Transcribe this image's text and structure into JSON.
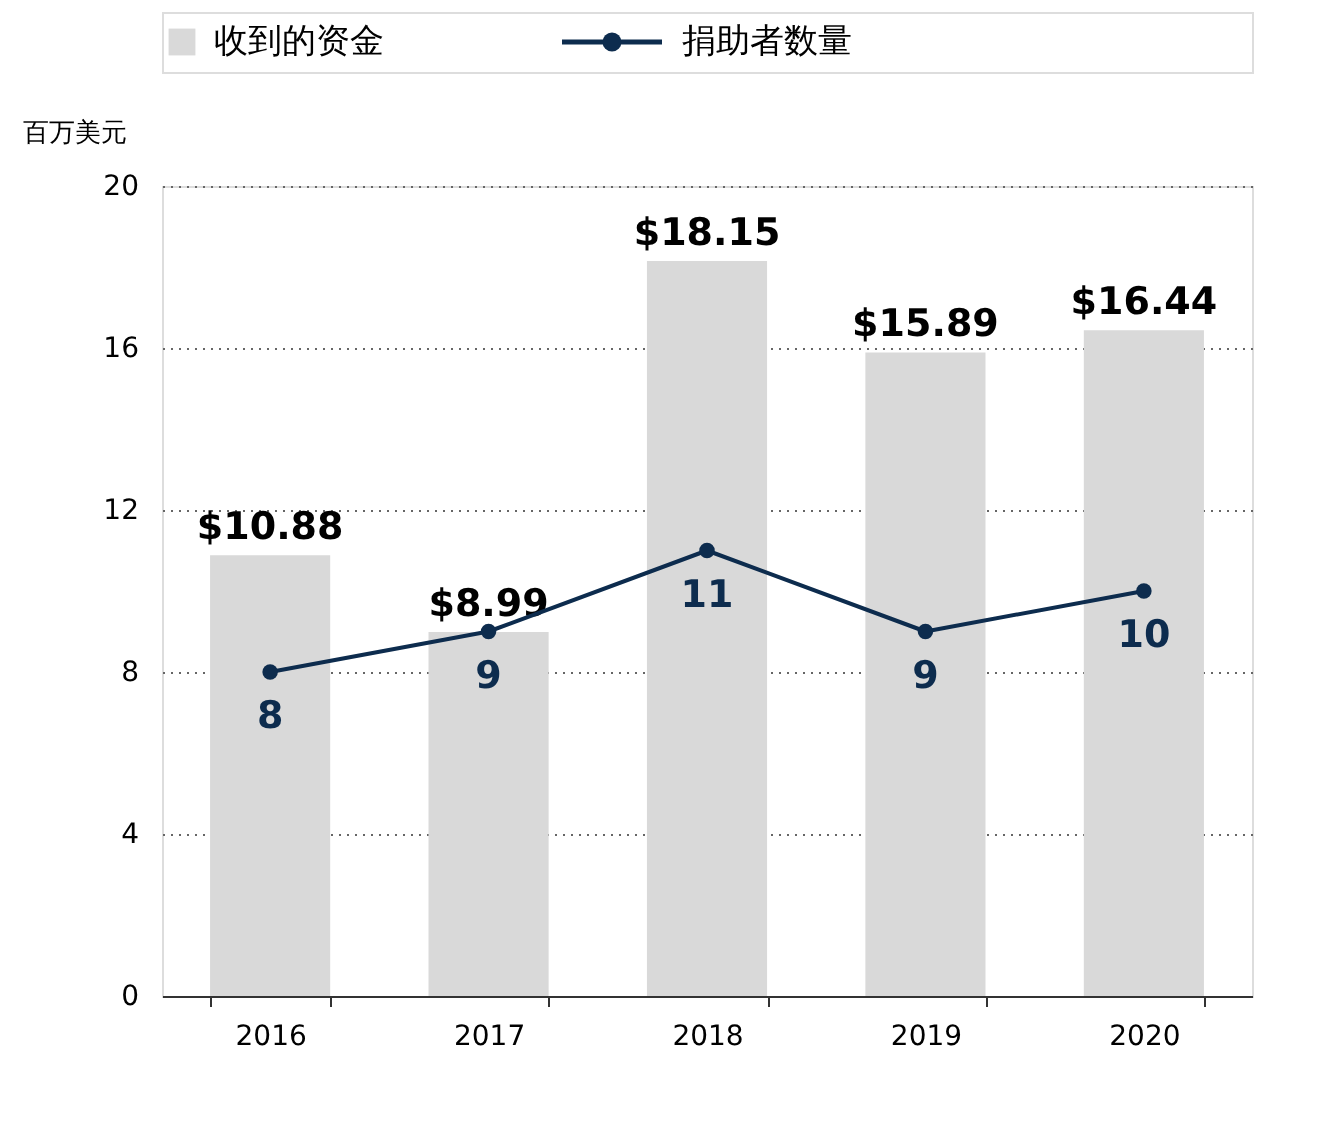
{
  "chart_data": {
    "type": "bar",
    "ylabel": "百万美元",
    "categories": [
      "2016",
      "2017",
      "2018",
      "2019",
      "2020"
    ],
    "series": [
      {
        "name": "收到的资金",
        "color": "#d9d9d9",
        "values": [
          10.88,
          8.99,
          18.15,
          15.89,
          16.44
        ],
        "value_labels": [
          "$10.88",
          "$8.99",
          "$18.15",
          "$15.89",
          "$16.44"
        ]
      },
      {
        "name": "捐助者数量",
        "type": "line",
        "color": "#0d2c4e",
        "values": [
          8,
          9,
          11,
          9,
          10
        ],
        "value_labels": [
          "8",
          "9",
          "11",
          "9",
          "10"
        ]
      }
    ],
    "ylim": [
      0,
      20
    ],
    "yticks": [
      0,
      4,
      8,
      12,
      16,
      20
    ],
    "grid": "y",
    "legend": "top",
    "marker": "circle",
    "line_style": "solid"
  }
}
